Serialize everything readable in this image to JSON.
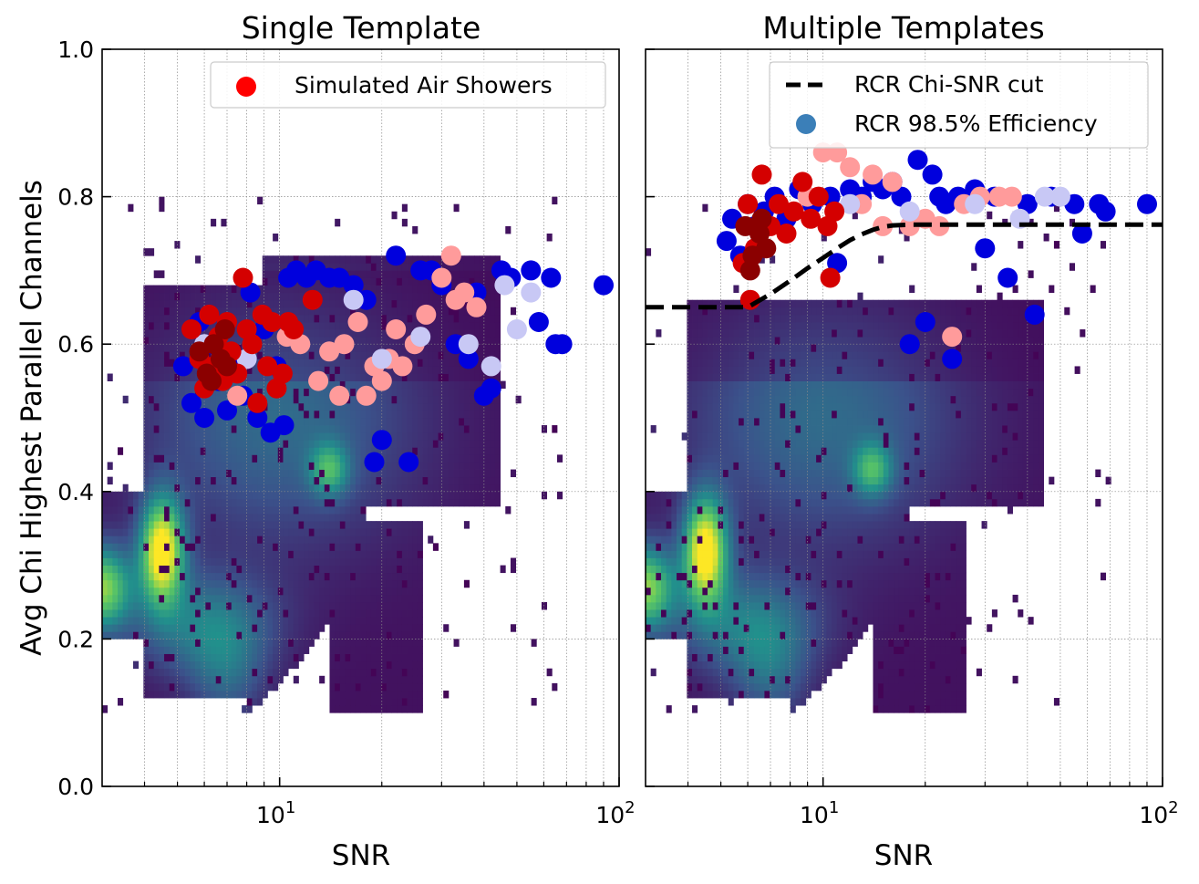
{
  "chart_data": [
    {
      "type": "scatter",
      "title": "Single Template",
      "xlabel": "SNR",
      "ylabel": "Avg Chi Highest Parallel Channels",
      "xscale": "log",
      "xlim": [
        3,
        100
      ],
      "ylim": [
        0.0,
        1.0
      ],
      "x_ticks": [
        {
          "value": 10,
          "base": "10",
          "exp": "1"
        },
        {
          "value": 100,
          "base": "10",
          "exp": "2"
        }
      ],
      "y_ticks": [
        {
          "value": 0.0,
          "label": "0.0"
        },
        {
          "value": 0.2,
          "label": "0.2"
        },
        {
          "value": 0.4,
          "label": "0.4"
        },
        {
          "value": 0.6,
          "label": "0.6"
        },
        {
          "value": 0.8,
          "label": "0.8"
        },
        {
          "value": 1.0,
          "label": "1.0"
        }
      ],
      "grid": true,
      "legend": {
        "position": "top-right",
        "entries": [
          {
            "label": "Simulated Air Showers",
            "marker": "circle",
            "color": "#ff0000"
          }
        ]
      },
      "background": {
        "type": "heatmap",
        "colormap": "viridis"
      },
      "series": [
        {
          "color": "#0000dd",
          "points": [
            [
              5.2,
              0.57
            ],
            [
              5.5,
              0.52
            ],
            [
              5.8,
              0.63
            ],
            [
              6.0,
              0.5
            ],
            [
              6.3,
              0.6
            ],
            [
              6.6,
              0.55
            ],
            [
              7.0,
              0.51
            ],
            [
              7.3,
              0.58
            ],
            [
              7.8,
              0.53
            ],
            [
              8.2,
              0.67
            ],
            [
              8.6,
              0.5
            ],
            [
              9.0,
              0.62
            ],
            [
              9.4,
              0.48
            ],
            [
              9.8,
              0.57
            ],
            [
              10.3,
              0.49
            ],
            [
              10.6,
              0.69
            ],
            [
              11.2,
              0.7
            ],
            [
              12.0,
              0.69
            ],
            [
              12.8,
              0.7
            ],
            [
              14.0,
              0.69
            ],
            [
              15.0,
              0.69
            ],
            [
              16.5,
              0.68
            ],
            [
              18.0,
              0.66
            ],
            [
              19.0,
              0.44
            ],
            [
              20.0,
              0.47
            ],
            [
              22.0,
              0.72
            ],
            [
              24.0,
              0.44
            ],
            [
              26.0,
              0.7
            ],
            [
              28.0,
              0.7
            ],
            [
              30.0,
              0.68
            ],
            [
              33.0,
              0.6
            ],
            [
              36.0,
              0.58
            ],
            [
              38.0,
              0.67
            ],
            [
              40.0,
              0.53
            ],
            [
              42.0,
              0.54
            ],
            [
              45.0,
              0.7
            ],
            [
              48.0,
              0.69
            ],
            [
              55.0,
              0.7
            ],
            [
              58.0,
              0.63
            ],
            [
              63.0,
              0.69
            ],
            [
              65.0,
              0.6
            ],
            [
              68.0,
              0.6
            ],
            [
              90.0,
              0.68
            ]
          ]
        },
        {
          "color": "#ff9b9b",
          "points": [
            [
              7.5,
              0.53
            ],
            [
              10.5,
              0.61
            ],
            [
              11.5,
              0.6
            ],
            [
              13.0,
              0.55
            ],
            [
              14.0,
              0.59
            ],
            [
              15.0,
              0.53
            ],
            [
              15.5,
              0.6
            ],
            [
              17.0,
              0.63
            ],
            [
              18.0,
              0.53
            ],
            [
              19.0,
              0.57
            ],
            [
              20.0,
              0.55
            ],
            [
              21.0,
              0.58
            ],
            [
              22.0,
              0.62
            ],
            [
              23.0,
              0.57
            ],
            [
              25.0,
              0.6
            ],
            [
              27.0,
              0.64
            ],
            [
              30.0,
              0.69
            ],
            [
              32.0,
              0.72
            ],
            [
              33.0,
              0.66
            ],
            [
              35.0,
              0.67
            ],
            [
              38.0,
              0.65
            ]
          ]
        },
        {
          "color": "#c8c8f5",
          "points": [
            [
              6.0,
              0.6
            ],
            [
              8.0,
              0.58
            ],
            [
              16.5,
              0.66
            ],
            [
              20.0,
              0.58
            ],
            [
              26.0,
              0.61
            ],
            [
              36.0,
              0.6
            ],
            [
              42.0,
              0.57
            ],
            [
              46.0,
              0.68
            ],
            [
              50.0,
              0.62
            ],
            [
              55.0,
              0.67
            ]
          ]
        },
        {
          "color": "#d40000",
          "points": [
            [
              5.5,
              0.62
            ],
            [
              5.8,
              0.58
            ],
            [
              6.0,
              0.54
            ],
            [
              6.2,
              0.64
            ],
            [
              6.4,
              0.57
            ],
            [
              6.6,
              0.61
            ],
            [
              6.8,
              0.55
            ],
            [
              7.0,
              0.63
            ],
            [
              7.2,
              0.59
            ],
            [
              7.5,
              0.56
            ],
            [
              7.8,
              0.69
            ],
            [
              8.0,
              0.62
            ],
            [
              8.3,
              0.6
            ],
            [
              8.6,
              0.52
            ],
            [
              8.9,
              0.64
            ],
            [
              9.2,
              0.57
            ],
            [
              9.5,
              0.63
            ],
            [
              9.8,
              0.54
            ],
            [
              10.2,
              0.56
            ],
            [
              10.6,
              0.63
            ],
            [
              11.0,
              0.62
            ],
            [
              12.5,
              0.66
            ]
          ]
        },
        {
          "color": "#8b0000",
          "points": [
            [
              5.8,
              0.59
            ],
            [
              6.1,
              0.56
            ],
            [
              6.4,
              0.6
            ],
            [
              6.7,
              0.58
            ],
            [
              7.0,
              0.57
            ],
            [
              6.3,
              0.55
            ],
            [
              6.9,
              0.62
            ]
          ]
        }
      ]
    },
    {
      "type": "scatter",
      "title": "Multiple Templates",
      "xlabel": "SNR",
      "ylabel": "",
      "xscale": "log",
      "xlim": [
        3,
        100
      ],
      "ylim": [
        0.0,
        1.0
      ],
      "x_ticks": [
        {
          "value": 10,
          "base": "10",
          "exp": "1"
        },
        {
          "value": 100,
          "base": "10",
          "exp": "2"
        }
      ],
      "grid": true,
      "legend": {
        "position": "top-right",
        "entries": [
          {
            "label": "RCR Chi-SNR cut",
            "marker": "dashed-line",
            "color": "#000000"
          },
          {
            "label": "RCR 98.5% Efficiency",
            "marker": "circle",
            "color": "#3b7fb8"
          }
        ]
      },
      "background": {
        "type": "heatmap",
        "colormap": "viridis"
      },
      "cut_line": {
        "x": [
          3.0,
          6.0,
          7.0,
          8.0,
          9.0,
          10.0,
          11.0,
          12.0,
          13.0,
          14.0,
          15.0,
          16.0,
          18.0,
          100.0
        ],
        "y": [
          0.65,
          0.65,
          0.668,
          0.686,
          0.703,
          0.717,
          0.73,
          0.741,
          0.749,
          0.755,
          0.759,
          0.761,
          0.762,
          0.762
        ]
      },
      "series": [
        {
          "color": "#0000dd",
          "points": [
            [
              5.2,
              0.74
            ],
            [
              5.4,
              0.77
            ],
            [
              5.7,
              0.72
            ],
            [
              6.0,
              0.79
            ],
            [
              6.3,
              0.76
            ],
            [
              6.7,
              0.78
            ],
            [
              7.2,
              0.8
            ],
            [
              7.8,
              0.77
            ],
            [
              8.5,
              0.81
            ],
            [
              9.3,
              0.79
            ],
            [
              10.5,
              0.8
            ],
            [
              11.0,
              0.71
            ],
            [
              12.0,
              0.81
            ],
            [
              13.0,
              0.8
            ],
            [
              14.0,
              0.82
            ],
            [
              15.0,
              0.81
            ],
            [
              16.0,
              0.82
            ],
            [
              17.0,
              0.8
            ],
            [
              18.0,
              0.6
            ],
            [
              19.0,
              0.85
            ],
            [
              20.0,
              0.63
            ],
            [
              21.0,
              0.83
            ],
            [
              22.0,
              0.8
            ],
            [
              23.0,
              0.79
            ],
            [
              24.0,
              0.58
            ],
            [
              25.0,
              0.8
            ],
            [
              28.0,
              0.81
            ],
            [
              30.0,
              0.73
            ],
            [
              32.0,
              0.8
            ],
            [
              35.0,
              0.69
            ],
            [
              40.0,
              0.79
            ],
            [
              42.0,
              0.64
            ],
            [
              47.0,
              0.8
            ],
            [
              55.0,
              0.79
            ],
            [
              58.0,
              0.75
            ],
            [
              65.0,
              0.79
            ],
            [
              68.0,
              0.78
            ],
            [
              90.0,
              0.79
            ]
          ]
        },
        {
          "color": "#ff9b9b",
          "points": [
            [
              9.0,
              0.8
            ],
            [
              10.0,
              0.86
            ],
            [
              11.0,
              0.86
            ],
            [
              12.0,
              0.84
            ],
            [
              13.0,
              0.79
            ],
            [
              14.0,
              0.83
            ],
            [
              15.0,
              0.76
            ],
            [
              16.0,
              0.82
            ],
            [
              18.0,
              0.76
            ],
            [
              20.0,
              0.77
            ],
            [
              22.0,
              0.76
            ],
            [
              24.0,
              0.61
            ],
            [
              26.0,
              0.79
            ],
            [
              29.0,
              0.8
            ],
            [
              33.0,
              0.8
            ],
            [
              36.0,
              0.8
            ]
          ]
        },
        {
          "color": "#c8c8f5",
          "points": [
            [
              12.0,
              0.79
            ],
            [
              18.0,
              0.78
            ],
            [
              28.0,
              0.79
            ],
            [
              38.0,
              0.77
            ],
            [
              45.0,
              0.8
            ],
            [
              50.0,
              0.8
            ]
          ]
        },
        {
          "color": "#d40000",
          "points": [
            [
              5.8,
              0.71
            ],
            [
              6.0,
              0.79
            ],
            [
              6.3,
              0.73
            ],
            [
              6.6,
              0.83
            ],
            [
              7.0,
              0.76
            ],
            [
              7.4,
              0.79
            ],
            [
              7.8,
              0.75
            ],
            [
              8.2,
              0.78
            ],
            [
              8.7,
              0.82
            ],
            [
              9.2,
              0.77
            ],
            [
              9.7,
              0.8
            ],
            [
              10.3,
              0.76
            ],
            [
              10.5,
              0.69
            ],
            [
              10.8,
              0.78
            ],
            [
              6.1,
              0.66
            ]
          ]
        },
        {
          "color": "#8b0000",
          "points": [
            [
              5.9,
              0.76
            ],
            [
              6.2,
              0.72
            ],
            [
              6.5,
              0.75
            ],
            [
              6.8,
              0.73
            ],
            [
              6.1,
              0.7
            ],
            [
              6.6,
              0.77
            ]
          ]
        }
      ]
    }
  ]
}
